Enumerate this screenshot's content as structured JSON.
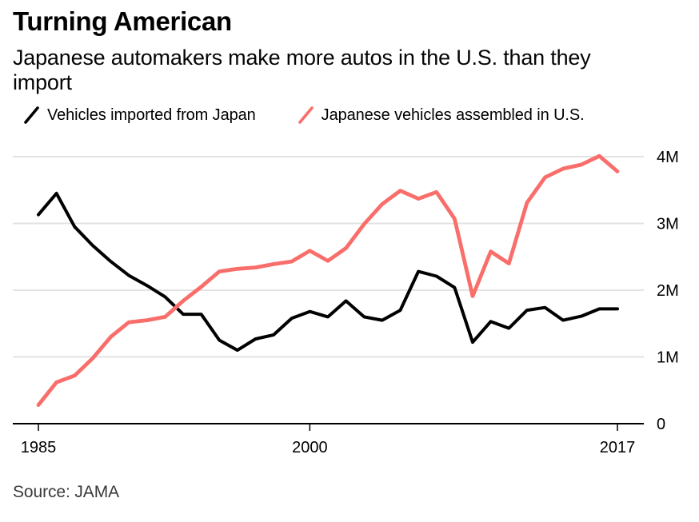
{
  "header": {
    "title": "Turning American",
    "subtitle": "Japanese automakers make more autos in the U.S. than they import"
  },
  "legend": {
    "items": [
      {
        "label": "Vehicles imported from Japan",
        "color": "#000000",
        "icon": "line-swatch-icon"
      },
      {
        "label": "Japanese vehicles assembled in U.S.",
        "color": "#f96e6a",
        "icon": "line-swatch-icon"
      }
    ]
  },
  "source": "Source: JAMA",
  "colors": {
    "imported_line": "#000000",
    "assembled_line": "#f96e6a",
    "gridline": "#e3e3e3",
    "axis": "#000000",
    "text": "#000000"
  },
  "chart_data": {
    "type": "line",
    "title": "Turning American",
    "subtitle": "Japanese automakers make more autos in the U.S. than they import",
    "unit": "million vehicles per year",
    "x": [
      1985,
      1986,
      1987,
      1988,
      1989,
      1990,
      1991,
      1992,
      1993,
      1994,
      1995,
      1996,
      1997,
      1998,
      1999,
      2000,
      2001,
      2002,
      2003,
      2004,
      2005,
      2006,
      2007,
      2008,
      2009,
      2010,
      2011,
      2012,
      2013,
      2014,
      2015,
      2016,
      2017
    ],
    "series": [
      {
        "name": "Vehicles imported from Japan",
        "color": "#000000",
        "values": [
          3.13,
          3.45,
          2.95,
          2.67,
          2.43,
          2.22,
          2.07,
          1.9,
          1.64,
          1.64,
          1.25,
          1.1,
          1.27,
          1.33,
          1.58,
          1.68,
          1.6,
          1.84,
          1.6,
          1.55,
          1.7,
          2.28,
          2.21,
          2.04,
          1.22,
          1.53,
          1.43,
          1.7,
          1.74,
          1.55,
          1.61,
          1.72,
          1.72
        ]
      },
      {
        "name": "Japanese vehicles assembled in U.S.",
        "color": "#f96e6a",
        "values": [
          0.28,
          0.62,
          0.72,
          0.98,
          1.3,
          1.52,
          1.55,
          1.6,
          1.84,
          2.05,
          2.28,
          2.32,
          2.34,
          2.39,
          2.43,
          2.59,
          2.44,
          2.63,
          2.99,
          3.29,
          3.49,
          3.37,
          3.47,
          3.07,
          1.91,
          2.58,
          2.4,
          3.31,
          3.69,
          3.82,
          3.88,
          4.01,
          3.78
        ]
      }
    ],
    "x_ticks": [
      1985,
      2000,
      2017
    ],
    "y_ticks": [
      {
        "value": 0,
        "label": "0"
      },
      {
        "value": 1,
        "label": "1M"
      },
      {
        "value": 2,
        "label": "2M"
      },
      {
        "value": 3,
        "label": "3M"
      },
      {
        "value": 4,
        "label": "4M"
      }
    ],
    "ylim": [
      0,
      4.15
    ],
    "grid": "horizontal",
    "legend_position": "top",
    "y_axis_side": "right"
  }
}
